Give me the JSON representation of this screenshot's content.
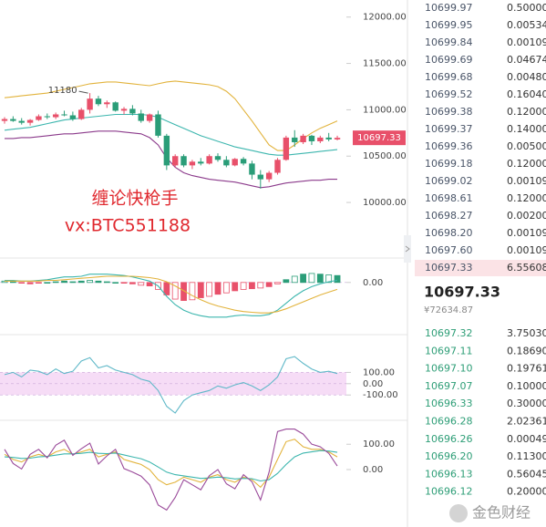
{
  "chart_data": [
    {
      "type": "candlestick",
      "up_color": "#e8506a",
      "down_color": "#2a9d78",
      "grid": false,
      "open": [
        10880,
        10900,
        10880,
        10860,
        10890,
        10930,
        10920,
        10950,
        10940,
        10900,
        11000,
        11120,
        11060,
        11080,
        10990,
        11010,
        10960,
        10880,
        10950,
        10720,
        10400,
        10500,
        10400,
        10440,
        10420,
        10500,
        10460,
        10400,
        10470,
        10420,
        10300,
        10250,
        10320,
        10460,
        10700,
        10650,
        10720,
        10660,
        10700,
        10680
      ],
      "high": [
        10920,
        10930,
        10910,
        10900,
        10950,
        10960,
        10970,
        10990,
        10980,
        11020,
        11180,
        11150,
        11100,
        11090,
        11030,
        11050,
        11000,
        10960,
        10990,
        10740,
        10520,
        10520,
        10460,
        10480,
        10520,
        10530,
        10500,
        10480,
        10490,
        10450,
        10350,
        10340,
        10480,
        10720,
        10780,
        10740,
        10730,
        10720,
        10750,
        10720
      ],
      "low": [
        10850,
        10870,
        10840,
        10830,
        10880,
        10900,
        10900,
        10930,
        10880,
        10890,
        10960,
        11040,
        11020,
        10980,
        10950,
        10940,
        10860,
        10860,
        10700,
        10350,
        10380,
        10380,
        10360,
        10400,
        10410,
        10440,
        10380,
        10390,
        10400,
        10250,
        10150,
        10220,
        10300,
        10450,
        10600,
        10630,
        10620,
        10640,
        10660,
        10670
      ],
      "close": [
        10900,
        10880,
        10860,
        10890,
        10930,
        10920,
        10950,
        10940,
        10900,
        11000,
        11120,
        11060,
        11080,
        10990,
        11010,
        10960,
        10880,
        10950,
        10720,
        10400,
        10500,
        10400,
        10440,
        10420,
        10500,
        10460,
        10400,
        10470,
        10420,
        10300,
        10250,
        10320,
        10460,
        10700,
        10650,
        10720,
        10660,
        10700,
        10680,
        10697.33
      ],
      "series": [
        {
          "color": "#e2b33c",
          "values": [
            11130,
            11140,
            11150,
            11160,
            11170,
            11180,
            11200,
            11220,
            11240,
            11260,
            11280,
            11290,
            11300,
            11300,
            11290,
            11280,
            11270,
            11260,
            11280,
            11300,
            11310,
            11300,
            11290,
            11280,
            11270,
            11250,
            11200,
            11120,
            11000,
            10880,
            10750,
            10620,
            10560,
            10560,
            10620,
            10690,
            10750,
            10800,
            10840,
            10880
          ]
        },
        {
          "color": "#3cb6ae",
          "values": [
            10780,
            10790,
            10800,
            10810,
            10830,
            10850,
            10870,
            10890,
            10900,
            10910,
            10920,
            10930,
            10940,
            10950,
            10950,
            10950,
            10950,
            10940,
            10920,
            10880,
            10840,
            10800,
            10760,
            10720,
            10690,
            10660,
            10630,
            10600,
            10580,
            10560,
            10540,
            10520,
            10510,
            10510,
            10520,
            10530,
            10540,
            10550,
            10560,
            10570
          ]
        },
        {
          "color": "#8b3a8b",
          "values": [
            10690,
            10690,
            10700,
            10700,
            10710,
            10720,
            10730,
            10740,
            10740,
            10750,
            10760,
            10770,
            10770,
            10770,
            10760,
            10750,
            10740,
            10700,
            10620,
            10480,
            10380,
            10320,
            10290,
            10270,
            10250,
            10240,
            10230,
            10220,
            10200,
            10180,
            10160,
            10170,
            10190,
            10210,
            10220,
            10230,
            10240,
            10240,
            10250,
            10250
          ]
        }
      ],
      "ylim": [
        9430,
        12145
      ],
      "yticks": [
        {
          "value": 12000,
          "label": "12000.00"
        },
        {
          "value": 11500,
          "label": "11500.00"
        },
        {
          "value": 11000,
          "label": "11000.00"
        },
        {
          "value": 10500,
          "label": "10500.00"
        },
        {
          "value": 10000,
          "label": "10000.00"
        }
      ]
    },
    {
      "type": "macd",
      "pos_color": "#2a9d78",
      "neg_color": "#e8506a",
      "histogram": [
        2,
        1,
        -1,
        -2,
        -1,
        0,
        1,
        2,
        1,
        2,
        3,
        2,
        1,
        0,
        -1,
        -2,
        -4,
        -5,
        -10,
        -18,
        -24,
        -26,
        -25,
        -22,
        -20,
        -17,
        -15,
        -12,
        -10,
        -9,
        -8,
        -6,
        -2,
        4,
        9,
        12,
        13,
        12,
        11,
        10
      ],
      "series": [
        {
          "color": "#3cb6ae",
          "values": [
            3,
            3,
            2,
            2,
            3,
            4,
            6,
            8,
            8,
            9,
            12,
            12,
            12,
            11,
            10,
            8,
            5,
            2,
            -5,
            -20,
            -32,
            -40,
            -45,
            -48,
            -50,
            -50,
            -50,
            -48,
            -47,
            -48,
            -48,
            -46,
            -40,
            -30,
            -20,
            -12,
            -6,
            -2,
            1,
            3
          ]
        },
        {
          "color": "#e2b33c",
          "values": [
            2,
            2,
            2,
            2,
            2,
            3,
            3,
            4,
            5,
            6,
            7,
            8,
            9,
            9,
            9,
            9,
            8,
            7,
            5,
            1,
            -5,
            -12,
            -19,
            -25,
            -30,
            -34,
            -37,
            -40,
            -42,
            -43,
            -44,
            -44,
            -42,
            -38,
            -33,
            -28,
            -23,
            -18,
            -14,
            -10
          ]
        }
      ],
      "ylim": [
        -70,
        30
      ],
      "yticks": [
        {
          "value": 0,
          "label": "0.00"
        }
      ]
    },
    {
      "type": "line",
      "shade": true,
      "shade_color": "#f6dcf6",
      "series": [
        {
          "color": "#5fb8c8",
          "values": [
            80,
            100,
            60,
            120,
            110,
            80,
            130,
            90,
            110,
            200,
            230,
            140,
            160,
            120,
            100,
            80,
            40,
            20,
            -60,
            -200,
            -260,
            -150,
            -100,
            -80,
            -60,
            -20,
            -40,
            -10,
            10,
            -20,
            -60,
            -10,
            60,
            220,
            240,
            180,
            130,
            100,
            110,
            90
          ]
        }
      ],
      "ylim": [
        -300,
        410
      ],
      "yticks": [
        {
          "value": 100,
          "label": "100.00"
        },
        {
          "value": 0,
          "label": "0.00"
        },
        {
          "value": -100,
          "label": "-100.00"
        }
      ]
    },
    {
      "type": "line",
      "shade": false,
      "series": [
        {
          "color": "#e2b33c",
          "values": [
            60,
            40,
            30,
            50,
            60,
            50,
            70,
            80,
            60,
            70,
            80,
            50,
            60,
            70,
            40,
            30,
            20,
            0,
            -40,
            -60,
            -50,
            -30,
            -40,
            -50,
            -30,
            -20,
            -40,
            -50,
            -30,
            -40,
            -70,
            -30,
            40,
            110,
            120,
            90,
            80,
            80,
            70,
            50
          ]
        },
        {
          "color": "#3cb6ae",
          "values": [
            50,
            48,
            44,
            45,
            50,
            52,
            57,
            62,
            62,
            64,
            68,
            64,
            63,
            65,
            58,
            50,
            43,
            30,
            10,
            -10,
            -20,
            -25,
            -30,
            -35,
            -33,
            -30,
            -32,
            -37,
            -35,
            -36,
            -45,
            -40,
            -15,
            20,
            50,
            65,
            70,
            75,
            73,
            68
          ]
        },
        {
          "color": "#9a4a9a",
          "values": [
            80,
            24,
            2,
            60,
            80,
            46,
            96,
            116,
            56,
            82,
            104,
            22,
            54,
            80,
            4,
            -10,
            -26,
            -60,
            -140,
            -160,
            -110,
            -40,
            -60,
            -80,
            -24,
            0,
            -56,
            -76,
            -20,
            -48,
            -120,
            -10,
            150,
            160,
            160,
            140,
            100,
            90,
            64,
            14
          ]
        }
      ],
      "ylim": [
        -180,
        180
      ],
      "yticks": [
        {
          "value": 100,
          "label": "100.00"
        },
        {
          "value": 0,
          "label": "0.00"
        }
      ]
    }
  ],
  "watermark": {
    "title": "缠论快枪手",
    "contact": "vx:BTC551188"
  },
  "order_book": {
    "asks": [
      [
        "10699.97",
        "0.50000"
      ],
      [
        "10699.95",
        "0.00534"
      ],
      [
        "10699.84",
        "0.00109"
      ],
      [
        "10699.69",
        "0.04674"
      ],
      [
        "10699.68",
        "0.00480"
      ],
      [
        "10699.52",
        "0.16040"
      ],
      [
        "10699.38",
        "0.12000"
      ],
      [
        "10699.37",
        "0.14000"
      ],
      [
        "10699.36",
        "0.00500"
      ],
      [
        "10699.18",
        "0.12000"
      ],
      [
        "10699.02",
        "0.00109"
      ],
      [
        "10698.61",
        "0.12000"
      ],
      [
        "10698.27",
        "0.00200"
      ],
      [
        "10698.20",
        "0.00109"
      ],
      [
        "10697.60",
        "0.00109"
      ],
      [
        "10697.33",
        "6.55608"
      ]
    ],
    "last_price": "10697.33",
    "last_price_cny": "¥72634.87",
    "bids": [
      [
        "10697.32",
        "3.75030"
      ],
      [
        "10697.11",
        "0.18690"
      ],
      [
        "10697.10",
        "0.19761"
      ],
      [
        "10697.07",
        "0.10000"
      ],
      [
        "10696.33",
        "0.30000"
      ],
      [
        "10696.28",
        "2.02361"
      ],
      [
        "10696.26",
        "0.00049"
      ],
      [
        "10696.20",
        "0.11300"
      ],
      [
        "10696.13",
        "0.56045"
      ],
      [
        "10696.12",
        "0.20000"
      ]
    ]
  },
  "site_watermark": "金色财经"
}
